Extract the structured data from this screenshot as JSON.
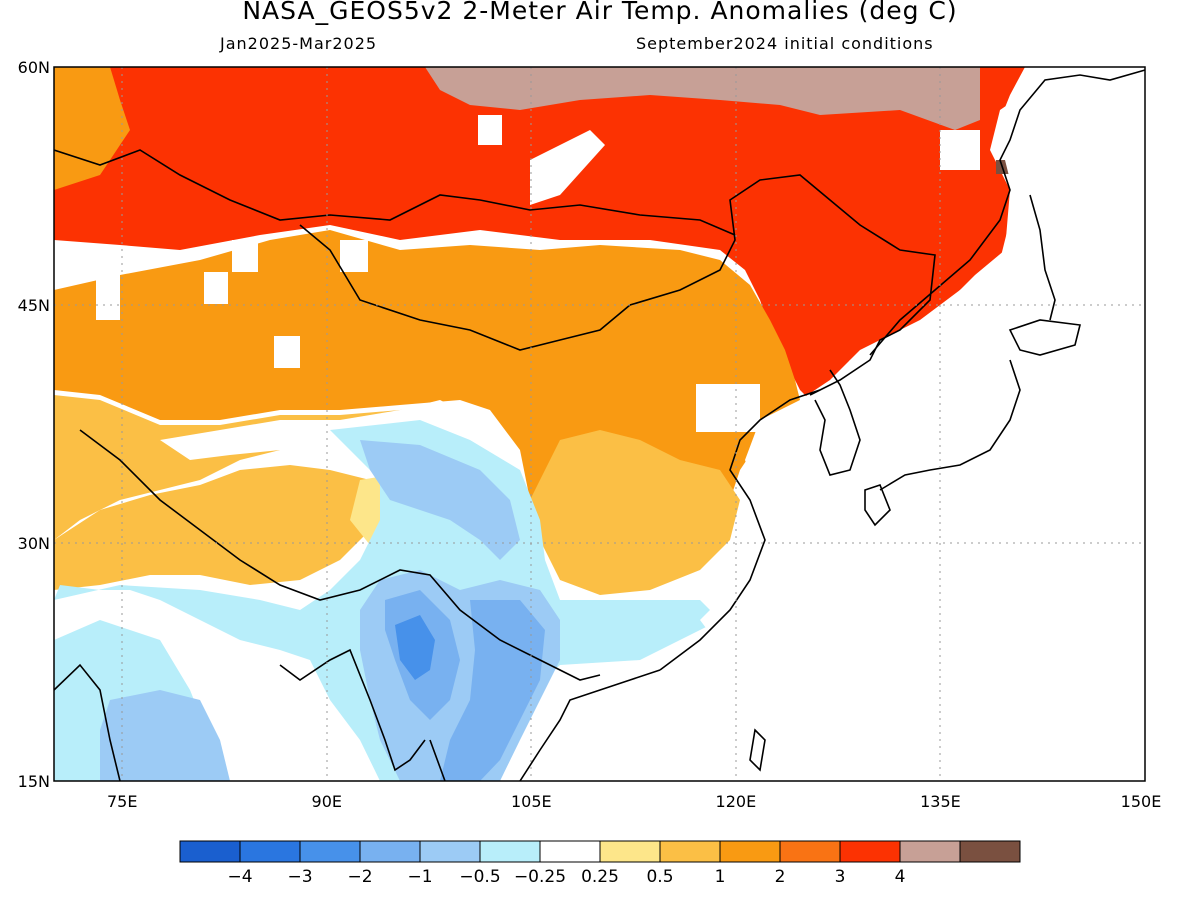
{
  "title": "NASA_GEOS5v2 2-Meter Air Temp. Anomalies (deg C)",
  "period": "Jan2025-Mar2025",
  "init": "September2024 initial conditions",
  "extent": {
    "lon_min": 70,
    "lon_max": 150,
    "lat_min": 15,
    "lat_max": 60
  },
  "lat_ticks": [
    {
      "value": 60,
      "label": "60N"
    },
    {
      "value": 45,
      "label": "45N"
    },
    {
      "value": 30,
      "label": "30N"
    },
    {
      "value": 15,
      "label": "15N"
    }
  ],
  "lon_ticks": [
    {
      "value": 75,
      "label": "75E"
    },
    {
      "value": 90,
      "label": "90E"
    },
    {
      "value": 105,
      "label": "105E"
    },
    {
      "value": 120,
      "label": "120E"
    },
    {
      "value": 135,
      "label": "135E"
    },
    {
      "value": 150,
      "label": "150E"
    }
  ],
  "colorbar": {
    "colors": [
      "#1a5fcf",
      "#2a76e0",
      "#4791ea",
      "#78b1f0",
      "#9ccbf5",
      "#b8eefa",
      "#ffffff",
      "#fde68a",
      "#fbbf45",
      "#f99a12",
      "#f97314",
      "#fc3202",
      "#c7a096",
      "#7a5040"
    ],
    "labels": [
      "-4",
      "-3",
      "-2",
      "-1",
      "-0.5",
      "-0.25",
      "0.25",
      "0.5",
      "1",
      "2",
      "3",
      "4"
    ]
  },
  "legend_colors": {
    "cool_strong": "#4791ea",
    "cool": "#78b1f0",
    "cool_light": "#9ccbf5",
    "cool_pale": "#b8eefa",
    "neutral": "#ffffff",
    "warm_pale": "#fde68a",
    "warm": "#fbbf45",
    "warm_orange": "#f99a12",
    "hot": "#fc3202",
    "very_hot": "#c7a096",
    "extreme": "#7a5040"
  }
}
